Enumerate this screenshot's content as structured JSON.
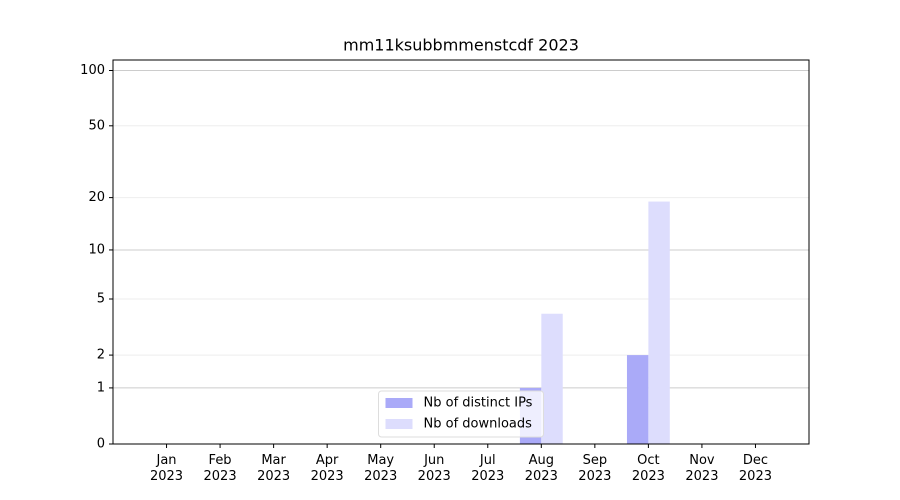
{
  "chart_data": {
    "type": "bar",
    "title": "mm11ksubbmmenstcdf 2023",
    "categories": [
      "Jan\n2023",
      "Feb\n2023",
      "Mar\n2023",
      "Apr\n2023",
      "May\n2023",
      "Jun\n2023",
      "Jul\n2023",
      "Aug\n2023",
      "Sep\n2023",
      "Oct\n2023",
      "Nov\n2023",
      "Dec\n2023"
    ],
    "series": [
      {
        "name": "Nb of distinct IPs",
        "color": "#aaaaf8",
        "values": [
          0,
          0,
          0,
          0,
          0,
          0,
          0,
          1,
          0,
          2,
          0,
          0
        ]
      },
      {
        "name": "Nb of downloads",
        "color": "#ddddfd",
        "values": [
          0,
          0,
          0,
          0,
          0,
          0,
          0,
          4,
          0,
          19,
          0,
          0
        ]
      }
    ],
    "yscale": "log1p",
    "ylim": [
      0,
      114
    ],
    "yticks": [
      0,
      1,
      2,
      5,
      10,
      20,
      50,
      100
    ],
    "grid": true,
    "legend": "lower center"
  }
}
